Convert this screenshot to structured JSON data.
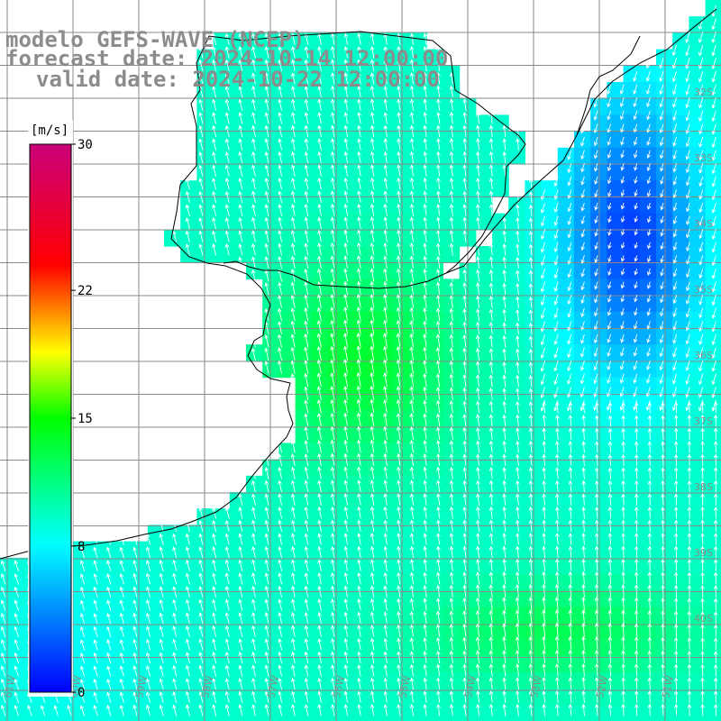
{
  "title": {
    "model": "modelo GEFS-WAVE (NCEP)",
    "forecast": "forecast date: 2024-10-14 12:00:00",
    "valid": "valid date: 2024-10-22 12:00:00"
  },
  "colorbar": {
    "unit": "[m/s]",
    "ticks": [
      {
        "value": 0,
        "label": "0"
      },
      {
        "value": 8,
        "label": "8"
      },
      {
        "value": 15,
        "label": "15"
      },
      {
        "value": 22,
        "label": "22"
      },
      {
        "value": 30,
        "label": "30"
      }
    ],
    "range": [
      0,
      30
    ],
    "colors": [
      "#0000ff",
      "#00ffff",
      "#00ff00",
      "#ffff00",
      "#ff0000",
      "#c8007a"
    ]
  },
  "map": {
    "field": "wind speed",
    "ocean_color_range": [
      "#0011ff",
      "#00ff00"
    ],
    "land_color": "#ffffff",
    "grid_color": "#8a8a8a",
    "arrow_color": "#ffffff",
    "lat_labels": [
      "32S",
      "33S",
      "34S",
      "35S",
      "36S",
      "37S",
      "38S",
      "39S",
      "40S"
    ],
    "lon_labels": [
      "61W",
      "60W",
      "59W",
      "58W",
      "57W",
      "56W",
      "55W",
      "54W",
      "53W",
      "52W",
      "51W"
    ]
  }
}
